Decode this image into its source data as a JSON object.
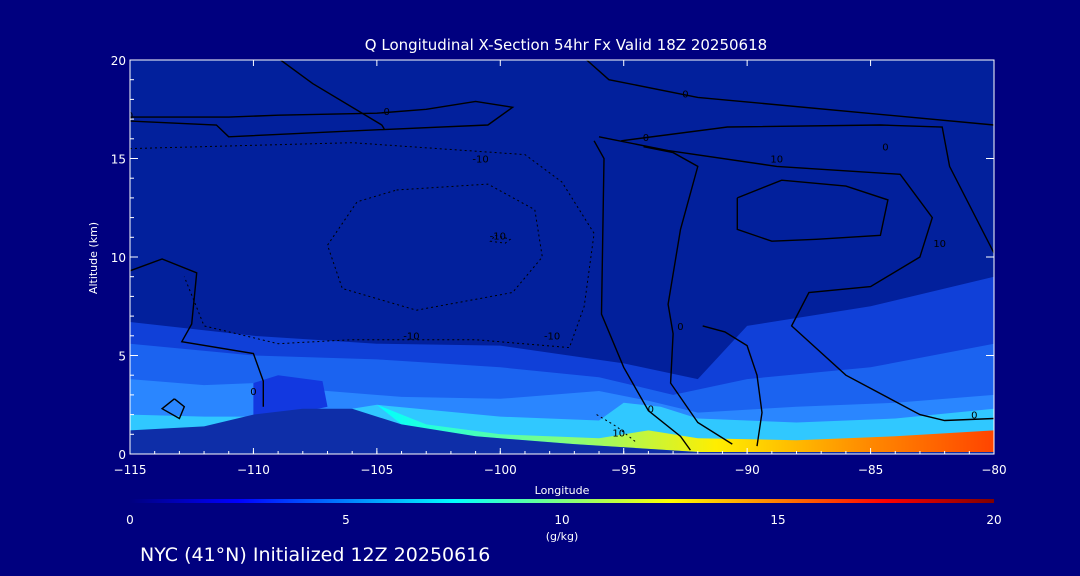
{
  "chart_data": {
    "type": "contour",
    "title": "Q Longitudinal X-Section 54hr  Fx Valid 18Z 20250618",
    "xlabel": "Longitude",
    "ylabel": "Altitude (km)",
    "xlim": [
      -115,
      -80
    ],
    "ylim": [
      0,
      20
    ],
    "x_ticks": [
      -115,
      -110,
      -105,
      -100,
      -95,
      -90,
      -85,
      -80
    ],
    "x_tick_labels": [
      "−115",
      "−110",
      "−105",
      "−100",
      "−95",
      "−90",
      "−85",
      "−80"
    ],
    "y_ticks": [
      0,
      5,
      10,
      15,
      20
    ],
    "y_tick_labels": [
      "0",
      "5",
      "10",
      "15",
      "20"
    ],
    "colorbar": {
      "label": "(g/kg)",
      "min": 0,
      "max": 20,
      "ticks": [
        0,
        5,
        10,
        15,
        20
      ],
      "tick_labels": [
        "0",
        "5",
        "10",
        "15",
        "20"
      ],
      "colormap": "jet"
    },
    "moisture_layer_top_km": [
      [
        -115,
        6.7
      ],
      [
        -110,
        6.0
      ],
      [
        -105,
        5.6
      ],
      [
        -100,
        5.5
      ],
      [
        -95,
        4.6
      ],
      [
        -92,
        3.8
      ],
      [
        -90,
        6.5
      ],
      [
        -85,
        7.5
      ],
      [
        -80,
        9.0
      ]
    ],
    "contour_labels": [
      {
        "text": "0",
        "lon": -115,
        "alt": 17.0
      },
      {
        "text": "0",
        "lon": -110,
        "alt": 3.0
      },
      {
        "text": "0",
        "lon": -104.6,
        "alt": 17.2
      },
      {
        "text": "0",
        "lon": -94.1,
        "alt": 15.9
      },
      {
        "text": "0",
        "lon": -92.5,
        "alt": 18.1
      },
      {
        "text": "0",
        "lon": -93.9,
        "alt": 2.1
      },
      {
        "text": "0",
        "lon": -80.8,
        "alt": 1.8
      },
      {
        "text": "0",
        "lon": -84.4,
        "alt": 15.4
      },
      {
        "text": "10",
        "lon": -88.8,
        "alt": 14.8
      },
      {
        "text": "10",
        "lon": -82.2,
        "alt": 10.5
      },
      {
        "text": "10",
        "lon": -95.2,
        "alt": 0.9
      },
      {
        "text": "-10",
        "lon": -100.8,
        "alt": 14.8
      },
      {
        "text": "-10",
        "lon": -100.1,
        "alt": 10.9
      },
      {
        "text": "-10",
        "lon": -103.6,
        "alt": 5.8
      },
      {
        "text": "-10",
        "lon": -97.9,
        "alt": 5.8
      },
      {
        "text": "0",
        "lon": -92.7,
        "alt": 6.3
      }
    ],
    "footer": "NYC (41°N) Initialized 12Z 20250616"
  },
  "colors": {
    "background": "#00007f",
    "plot_background": "#02209c",
    "contour": "#000000",
    "text": "#ffffff"
  }
}
